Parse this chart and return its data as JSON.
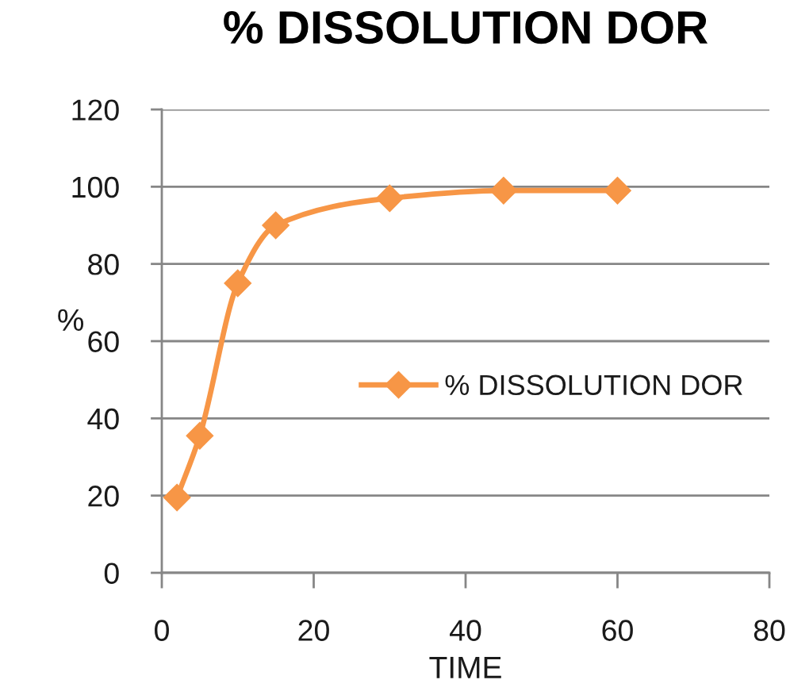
{
  "chart_data": {
    "type": "line",
    "title": "% DISSOLUTION DOR",
    "xlabel": "TIME",
    "ylabel": "%",
    "x": [
      2,
      5,
      10,
      15,
      30,
      45,
      60
    ],
    "series": [
      {
        "name": "% DISSOLUTION DOR",
        "color": "#f79646",
        "values": [
          19.5,
          35.5,
          75,
          90,
          97,
          99,
          99
        ]
      }
    ],
    "xlim": [
      0,
      80
    ],
    "xticks": [
      0,
      20,
      40,
      60,
      80
    ],
    "ylim": [
      0,
      120
    ],
    "yticks": [
      0,
      20,
      40,
      60,
      80,
      100,
      120
    ],
    "grid": "y",
    "legend": "right",
    "marker": "diamond",
    "line_style": "solid"
  }
}
